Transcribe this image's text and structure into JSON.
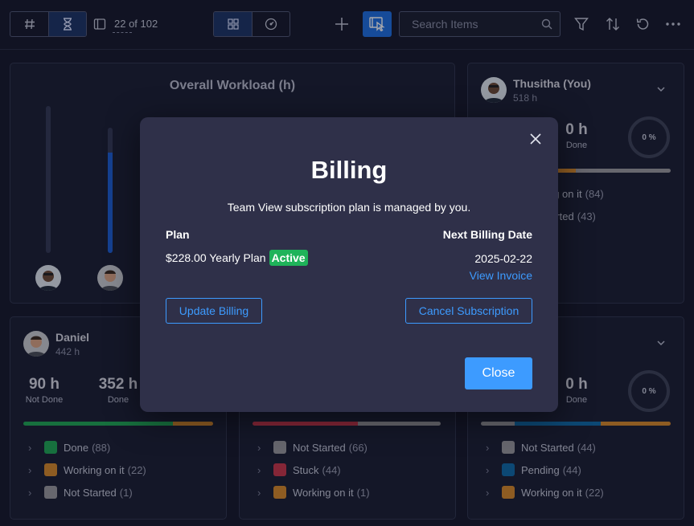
{
  "toolbar": {
    "counter": "22 of 102",
    "search_placeholder": "Search Items"
  },
  "workload": {
    "title": "Overall Workload (h)",
    "bar_fill_fractions": [
      0.0,
      0.8
    ]
  },
  "cards": {
    "thusitha": {
      "name": "Thusitha (You)",
      "hours": "518 h",
      "done_value": "0 h",
      "done_label": "Done",
      "percent": "0 %",
      "statuses": [
        {
          "label": "Working on it",
          "count": "(84)"
        },
        {
          "label": "Not Started",
          "count": "(43)"
        }
      ]
    },
    "daniel": {
      "name": "Daniel",
      "hours": "442 h",
      "not_done_value": "90 h",
      "not_done_label": "Not Done",
      "done_value": "352 h",
      "done_label": "Done",
      "statuses": [
        {
          "label": "Done",
          "count": "(88)",
          "color": "#1fa855"
        },
        {
          "label": "Working on it",
          "count": "(22)",
          "color": "#d6892a"
        },
        {
          "label": "Not Started",
          "count": "(1)",
          "color": "#9a9a9e"
        }
      ]
    },
    "middle": {
      "statuses": [
        {
          "label": "Not Started",
          "count": "(66)",
          "color": "#9a9a9e"
        },
        {
          "label": "Stuck",
          "count": "(44)",
          "color": "#c8364a"
        },
        {
          "label": "Working on it",
          "count": "(1)",
          "color": "#d6892a"
        }
      ]
    },
    "right": {
      "done_value": "0 h",
      "done_label": "Done",
      "percent": "0 %",
      "statuses": [
        {
          "label": "Not Started",
          "count": "(44)",
          "color": "#9a9a9e"
        },
        {
          "label": "Pending",
          "count": "(44)",
          "color": "#0e6aa8"
        },
        {
          "label": "Working on it",
          "count": "(22)",
          "color": "#d6892a"
        }
      ]
    }
  },
  "modal": {
    "title": "Billing",
    "subtitle": "Team View subscription plan is managed by you.",
    "plan_label": "Plan",
    "next_billing_label": "Next Billing Date",
    "plan_value": "$228.00 Yearly Plan",
    "plan_status": "Active",
    "next_billing_date": "2025-02-22",
    "view_invoice": "View Invoice",
    "update_billing": "Update Billing",
    "cancel_subscription": "Cancel Subscription",
    "close": "Close"
  },
  "colors": {
    "accent": "#3d9bff",
    "active_badge": "#1fb35a",
    "done": "#1fa855",
    "working": "#d6892a",
    "not_started": "#9a9a9e",
    "stuck": "#c8364a",
    "pending": "#0e6aa8"
  }
}
